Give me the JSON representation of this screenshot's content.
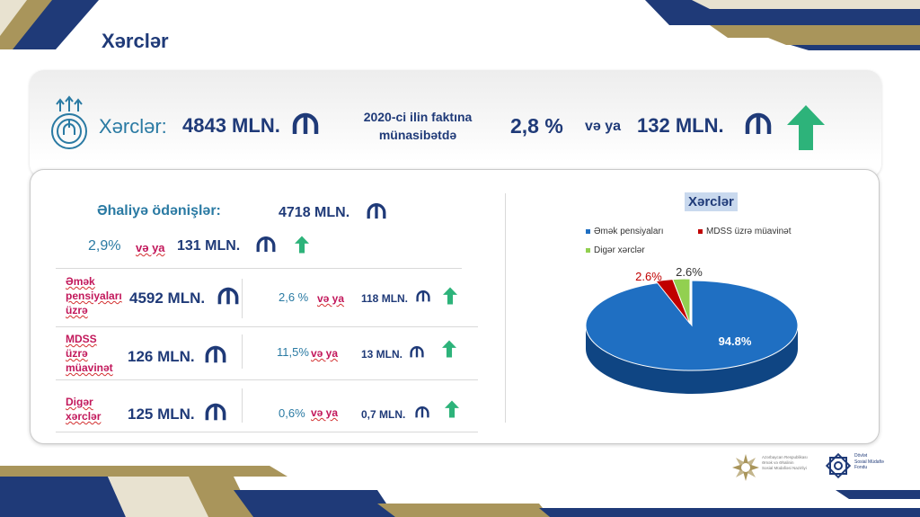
{
  "colors": {
    "navy": "#1f3a78",
    "gold": "#a9955b",
    "green": "#2db37a",
    "magenta": "#c2185b",
    "pie_blue": "#1f6fc2",
    "pie_red": "#c00000",
    "pie_green": "#92d050"
  },
  "header": {
    "title": "Xərclər"
  },
  "summary": {
    "label": "Xərclər:",
    "total": "4843 MLN.",
    "comparison_line1": "2020-ci ilin faktına",
    "comparison_line2": "münasibətdə",
    "percent": "2,8 %",
    "or": "və ya",
    "delta": "132 MLN.",
    "icon": "expenses-icon",
    "trend": "up"
  },
  "payments": {
    "label": "Əhaliyə ödənişlər:",
    "amount": "4718 MLN.",
    "percent": "2,9%",
    "or": "və ya",
    "delta": "131 MLN."
  },
  "rows": [
    {
      "label_lines": [
        "Əmək",
        "pensiyaları",
        "üzrə"
      ],
      "amount": "4592 MLN.",
      "percent": "2,6 %",
      "or": "və ya",
      "delta": "118 MLN."
    },
    {
      "label_lines": [
        "MDSS",
        "üzrə",
        "müavinət"
      ],
      "amount": "126 MLN.",
      "percent": "11,5%",
      "or": "və ya",
      "delta": "13 MLN."
    },
    {
      "label_lines": [
        "Digər",
        "xərclər"
      ],
      "amount": "125 MLN.",
      "percent": "0,6%",
      "or": "və ya",
      "delta": "0,7 MLN."
    }
  ],
  "chart_data": {
    "type": "pie",
    "title": "Xərclər",
    "categories": [
      "Əmək pensiyaları",
      "MDSS üzrə müavinət",
      "Digər xərclər"
    ],
    "values": [
      94.8,
      2.6,
      2.6
    ],
    "labels": [
      "94.8%",
      "2.6%",
      "2.6%"
    ],
    "legend_position": "top"
  },
  "logos": [
    {
      "name": "ministry-logo",
      "lines": [
        "Azərbaycan Respublikası",
        "Əmək və Əhalinin",
        "Sosial Müdafiəsi Nazirliyi"
      ]
    },
    {
      "name": "fund-logo",
      "lines": [
        "Dövlət",
        "Sosial Müdafiə",
        "Fondu"
      ]
    }
  ]
}
